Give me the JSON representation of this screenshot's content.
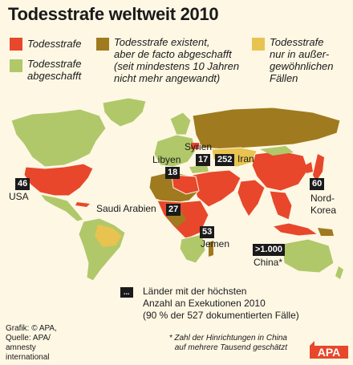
{
  "title": "Todesstrafe weltweit 2010",
  "legend": [
    {
      "color": "#e8472b",
      "lines": [
        "Todesstrafe"
      ]
    },
    {
      "color": "#b0c86a",
      "lines": [
        "Todesstrafe",
        "abgeschafft"
      ]
    },
    {
      "color": "#a07a1e",
      "lines": [
        "Todesstrafe existent,",
        "aber de facto abgeschafft",
        "(seit mindestens 10 Jahren",
        "nicht mehr angewandt)"
      ]
    },
    {
      "color": "#e8c34f",
      "lines": [
        "Todesstrafe",
        "nur in außer-",
        "gewöhnlichen",
        "Fällen"
      ]
    }
  ],
  "countries": {
    "usa": {
      "label": "USA",
      "executions": "46"
    },
    "libya": {
      "label": "Libyen",
      "executions": "18"
    },
    "syria": {
      "label": "Syrien",
      "executions": "17"
    },
    "iran": {
      "label": "Iran",
      "executions": "252"
    },
    "saudi": {
      "label": "Saudi Arabien",
      "executions": "27"
    },
    "yemen": {
      "label": "Jemen",
      "executions": "53"
    },
    "nkorea": {
      "label": "Nord-Korea",
      "label_lines": [
        "Nord-",
        "Korea"
      ],
      "executions": "60"
    },
    "china": {
      "label": "China*",
      "executions": ">1.000"
    }
  },
  "key_note": {
    "badge": "...",
    "lines": [
      "Länder mit der höchsten",
      "Anzahl an Exekutionen 2010",
      "(90 % der 527 dokumentierten Fälle)"
    ]
  },
  "footnote": [
    "* Zahl der Hinrichtungen in China",
    "auf mehrere Tausend geschätzt"
  ],
  "credit": [
    "Grafik: © APA,",
    "Quelle: APA/",
    "amnesty",
    "international"
  ],
  "logo_text": "APA"
}
